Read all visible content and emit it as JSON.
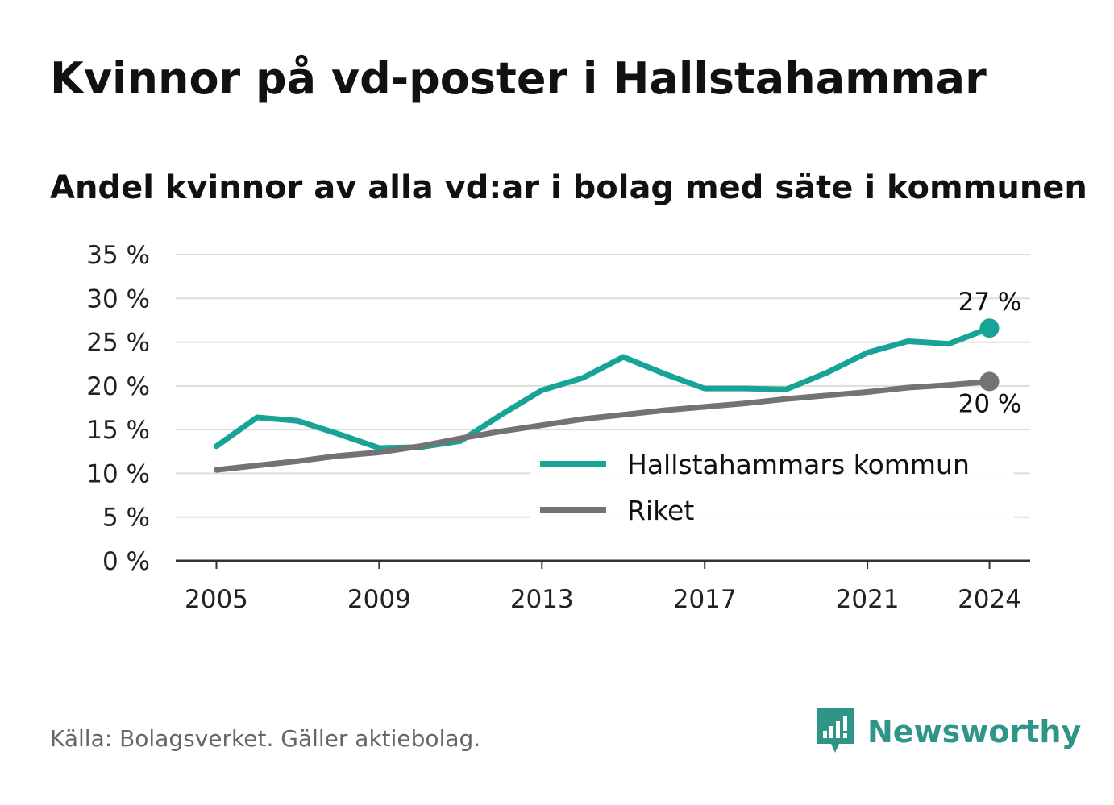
{
  "header": {
    "title": "Kvinnor på vd-poster i Hallstahammar",
    "subtitle": "Andel kvinnor av alla vd:ar i bolag med säte i kommunen"
  },
  "footer": {
    "source": "Källa: Bolagsverket. Gäller aktiebolag.",
    "brand": "Newsworthy",
    "brand_icon": "newsworthy-logo-icon"
  },
  "colors": {
    "kommun": "#17a396",
    "riket": "#737275",
    "grid": "#dddddd",
    "axis": "#333333",
    "brand": "#2f9589"
  },
  "chart_data": {
    "type": "line",
    "title": "Kvinnor på vd-poster i Hallstahammar",
    "subtitle": "Andel kvinnor av alla vd:ar i bolag med säte i kommunen",
    "xlabel": "",
    "ylabel": "",
    "x": [
      2005,
      2006,
      2007,
      2008,
      2009,
      2010,
      2011,
      2012,
      2013,
      2014,
      2015,
      2016,
      2017,
      2018,
      2019,
      2020,
      2021,
      2022,
      2023,
      2024
    ],
    "xlim": [
      2004,
      2025
    ],
    "xticks": [
      "2005",
      "2009",
      "2013",
      "2017",
      "2021",
      "2024"
    ],
    "ylim": [
      0,
      35
    ],
    "yticks": [
      "0 %",
      "5 %",
      "10 %",
      "15 %",
      "20 %",
      "25 %",
      "30 %",
      "35 %"
    ],
    "grid": true,
    "legend_position": "bottom-right",
    "series": [
      {
        "name": "Hallstahammars kommun",
        "color": "#17a396",
        "values": [
          13.1,
          16.4,
          16.0,
          14.5,
          12.9,
          13.0,
          13.7,
          16.7,
          19.5,
          20.9,
          23.3,
          21.4,
          19.7,
          19.7,
          19.6,
          21.5,
          23.8,
          25.1,
          24.8,
          26.6
        ],
        "end_label": "27 %"
      },
      {
        "name": "Riket",
        "color": "#737275",
        "values": [
          10.4,
          10.9,
          11.4,
          12.0,
          12.4,
          13.1,
          14.0,
          14.8,
          15.5,
          16.2,
          16.7,
          17.2,
          17.6,
          18.0,
          18.5,
          18.9,
          19.3,
          19.8,
          20.1,
          20.5
        ],
        "end_label": "20 %"
      }
    ]
  }
}
